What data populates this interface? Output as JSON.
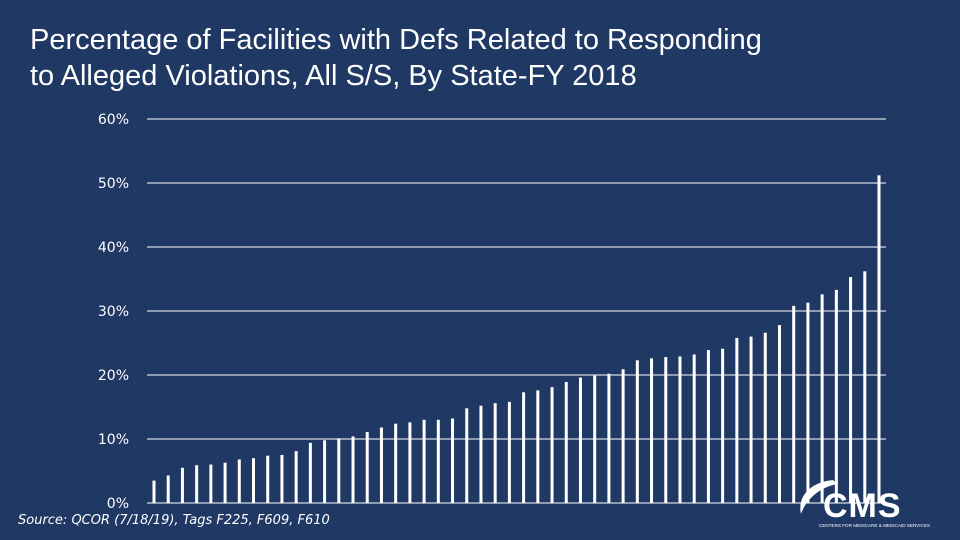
{
  "title_line1": "Percentage of Facilities with Defs Related to Responding",
  "title_line2": "to Alleged Violations, All S/S, By State-FY 2018",
  "source": "Source: QCOR (7/18/19), Tags F225, F609, F610",
  "logo": {
    "text": "CMS",
    "subtext": "CENTERS FOR MEDICARE & MEDICAID SERVICES"
  },
  "colors": {
    "background": "#1f3864",
    "bars": "#ffffff",
    "gridlines": "#ffffff"
  },
  "chart_data": {
    "type": "bar",
    "title": "Percentage of Facilities with Defs Related to Responding to Alleged Violations, All S/S, By State-FY 2018",
    "xlabel": "",
    "ylabel": "",
    "ylim": [
      0,
      60
    ],
    "yticks": [
      0,
      10,
      20,
      30,
      40,
      50,
      60
    ],
    "ytick_labels": [
      "0%",
      "10%",
      "20%",
      "30%",
      "40%",
      "50%",
      "60%"
    ],
    "grid": true,
    "values": [
      3.5,
      4.3,
      5.5,
      5.9,
      6.0,
      6.3,
      6.8,
      7.0,
      7.4,
      7.5,
      8.1,
      9.4,
      9.8,
      10.1,
      10.4,
      11.1,
      11.8,
      12.4,
      12.6,
      13.0,
      13.0,
      13.2,
      14.8,
      15.2,
      15.6,
      15.8,
      17.3,
      17.6,
      18.1,
      18.9,
      19.6,
      19.9,
      20.2,
      20.9,
      22.3,
      22.6,
      22.8,
      22.9,
      23.2,
      23.9,
      24.1,
      25.8,
      26.0,
      26.6,
      27.8,
      30.8,
      31.3,
      32.6,
      33.3,
      35.3,
      36.2,
      51.2
    ]
  }
}
